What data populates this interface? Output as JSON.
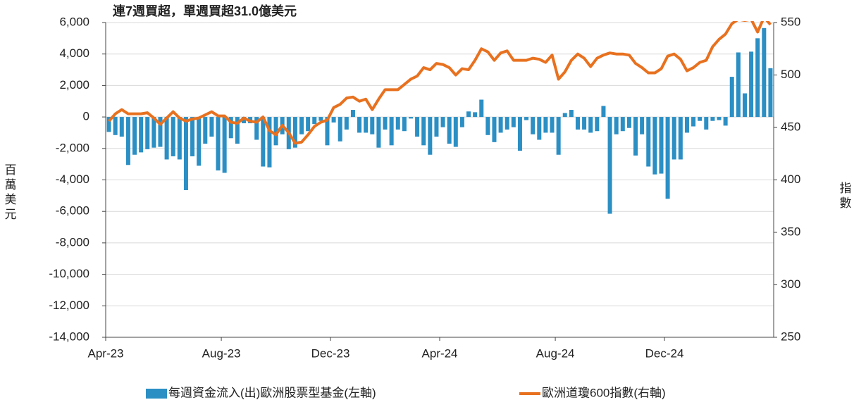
{
  "chart_data": {
    "type": "combo",
    "title": "連7週買超，單週買超31.0億美元",
    "title_color": "#c00000",
    "y_label": "百萬美元",
    "y2_label": "指數",
    "categories": [
      "Apr-23",
      null,
      null,
      null,
      null,
      null,
      null,
      null,
      null,
      null,
      null,
      null,
      null,
      null,
      null,
      null,
      null,
      null,
      "Aug-23",
      null,
      null,
      null,
      null,
      null,
      null,
      null,
      null,
      null,
      null,
      null,
      null,
      null,
      null,
      null,
      null,
      "Dec-23",
      null,
      null,
      null,
      null,
      null,
      null,
      null,
      null,
      null,
      null,
      null,
      null,
      null,
      null,
      null,
      null,
      "Apr-24",
      null,
      null,
      null,
      null,
      null,
      null,
      null,
      null,
      null,
      null,
      null,
      null,
      null,
      null,
      null,
      null,
      null,
      "Aug-24",
      null,
      null,
      null,
      null,
      null,
      null,
      null,
      null,
      null,
      null,
      null,
      null,
      null,
      null,
      null,
      null,
      "Dec-24",
      null,
      null,
      null,
      null,
      null,
      null,
      null,
      null,
      null,
      null,
      null,
      null,
      null,
      null,
      null,
      null
    ],
    "series": [
      {
        "name": "每週資金流入(出)歐洲股票型基金(左軸)",
        "type": "bar",
        "color": "#2b8fc4",
        "values": [
          -950,
          -1150,
          -1250,
          -3050,
          -2400,
          -2250,
          -2050,
          -1950,
          -1900,
          -2700,
          -2500,
          -2700,
          -4650,
          -2500,
          -3100,
          -1700,
          -1250,
          -3400,
          -3550,
          -1350,
          -1700,
          -400,
          -400,
          -1450,
          -3150,
          -3200,
          -1800,
          -1100,
          -2050,
          -1950,
          -1100,
          -900,
          -450,
          -250,
          -1800,
          -350,
          -1550,
          -800,
          450,
          -1000,
          -1000,
          -1100,
          -1950,
          -800,
          -1800,
          -800,
          -900,
          -100,
          -1250,
          -1800,
          -2400,
          -1250,
          -650,
          -1700,
          -1900,
          -650,
          350,
          300,
          1100,
          -1150,
          -1600,
          -1000,
          -800,
          -650,
          -2150,
          -200,
          -1100,
          -1450,
          -1000,
          -1000,
          -2400,
          250,
          450,
          -800,
          -800,
          -1000,
          -900,
          700,
          -6150,
          -1100,
          -900,
          -700,
          -2450,
          -1100,
          -3150,
          -3650,
          -3600,
          -5200,
          -2700,
          -2700,
          -1000,
          -600,
          -250,
          -800,
          -250,
          -200,
          -550,
          2550,
          4100,
          1500,
          4150,
          5000,
          5650,
          3100
        ]
      },
      {
        "name": "歐洲道瓊600指數(右軸)",
        "type": "line",
        "axis": "y2",
        "color": "#e8711f",
        "values": [
          456,
          463,
          467,
          463,
          463,
          463,
          464,
          459,
          453,
          459,
          465,
          459,
          456,
          458,
          459,
          462,
          465,
          461,
          461,
          455,
          454,
          459,
          456,
          455,
          460,
          447,
          443,
          452,
          445,
          435,
          436,
          443,
          451,
          455,
          457,
          469,
          472,
          478,
          479,
          475,
          477,
          467,
          477,
          486,
          486,
          486,
          491,
          496,
          499,
          507,
          505,
          511,
          510,
          507,
          500,
          506,
          505,
          514,
          525,
          522,
          514,
          521,
          523,
          514,
          514,
          514,
          516,
          515,
          512,
          519,
          496,
          503,
          514,
          520,
          516,
          508,
          516,
          519,
          521,
          520,
          520,
          519,
          511,
          507,
          502,
          502,
          506,
          518,
          520,
          515,
          504,
          507,
          512,
          514,
          527,
          534,
          539,
          549,
          553,
          552,
          553,
          541,
          555,
          548
        ]
      }
    ],
    "ylim": [
      -14000,
      6000
    ],
    "yticks": [
      {
        "value": -14000,
        "label": "-14,000"
      },
      {
        "value": -12000,
        "label": "-12,000"
      },
      {
        "value": -10000,
        "label": "-10,000"
      },
      {
        "value": -8000,
        "label": "-8,000"
      },
      {
        "value": -6000,
        "label": "-6,000"
      },
      {
        "value": -4000,
        "label": "-4,000"
      },
      {
        "value": -2000,
        "label": "-2,000"
      },
      0,
      {
        "value": 2000,
        "label": "2,000"
      },
      {
        "value": 4000,
        "label": "4,000"
      },
      {
        "value": 6000,
        "label": "6,000"
      }
    ],
    "negative_tick_color": "#e00000",
    "y2lim": [
      250,
      550
    ],
    "y2ticks": [
      250,
      300,
      350,
      400,
      450,
      500,
      550
    ],
    "grid": true
  }
}
